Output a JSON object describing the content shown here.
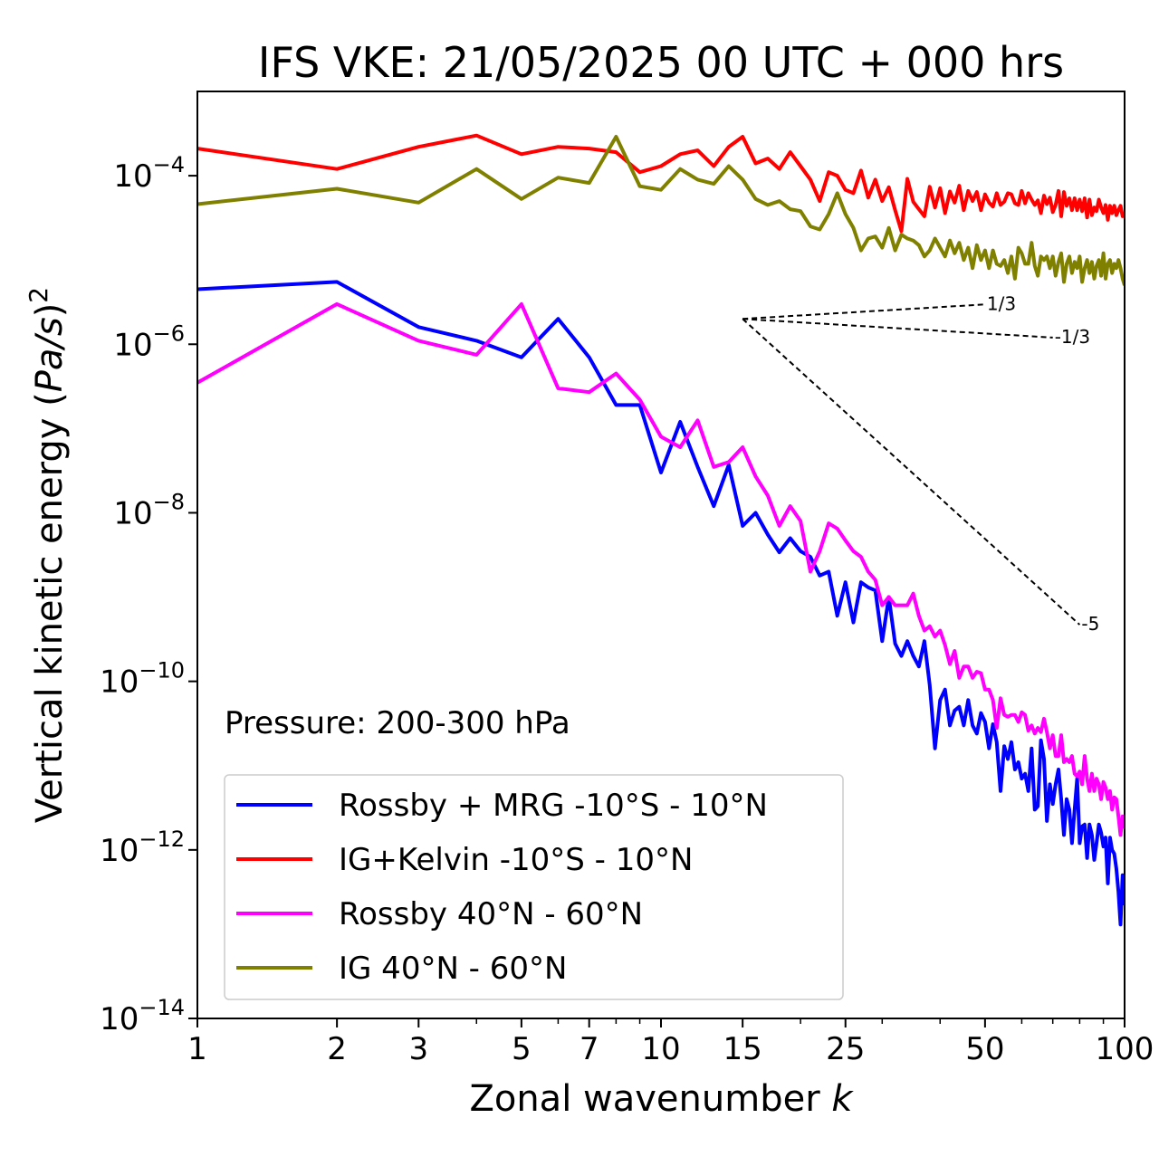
{
  "chart_data": {
    "type": "line",
    "title": "IFS VKE: 21/05/2025 00 UTC + 000 hrs",
    "xlabel": "Zonal wavenumber k",
    "ylabel": "Vertical kinetic energy (Pa/s)^2",
    "xscale": "log",
    "yscale": "log",
    "xlim": [
      1,
      100
    ],
    "ylim": [
      1e-14,
      0.001
    ],
    "x_ticks": [
      1,
      2,
      3,
      5,
      7,
      10,
      15,
      25,
      50,
      100
    ],
    "x_tick_labels": [
      "1",
      "2",
      "3",
      "5",
      "7",
      "10",
      "15",
      "25",
      "50",
      "100"
    ],
    "y_ticks": [
      -14,
      -12,
      -10,
      -8,
      -6,
      -4
    ],
    "y_tick_labels": [
      {
        "base": "10",
        "exp": "−14"
      },
      {
        "base": "10",
        "exp": "−12"
      },
      {
        "base": "10",
        "exp": "−10"
      },
      {
        "base": "10",
        "exp": "−8"
      },
      {
        "base": "10",
        "exp": "−6"
      },
      {
        "base": "10",
        "exp": "−4"
      }
    ],
    "annotation": "Pressure: 200-300 hPa",
    "legend_position": "lower-left",
    "grid": false,
    "series": [
      {
        "name": "Rossby + MRG -10°S - 10°N",
        "color": "#0000ff",
        "x": [
          1,
          2,
          3,
          4,
          5,
          6,
          7,
          8,
          9,
          10,
          11,
          12,
          13,
          14,
          15,
          16,
          17,
          18,
          19,
          20,
          21,
          22,
          23,
          24,
          25,
          26,
          27,
          28,
          29,
          30,
          31,
          32,
          33,
          34,
          35,
          36,
          37,
          38,
          39,
          40,
          41,
          42,
          43,
          44,
          45,
          46,
          47,
          48,
          49,
          50,
          51,
          52,
          53,
          54,
          55,
          56,
          57,
          58,
          59,
          60,
          61,
          62,
          63,
          64,
          65,
          66,
          67,
          68,
          69,
          70,
          71,
          72,
          73,
          74,
          75,
          76,
          77,
          78,
          79,
          80,
          81,
          82,
          83,
          84,
          85,
          86,
          87,
          88,
          89,
          90,
          91,
          92,
          93,
          94,
          95,
          96,
          97,
          98,
          99,
          100
        ],
        "y": [
          4.5e-06,
          5.5e-06,
          1.6e-06,
          1.1e-06,
          7e-07,
          2e-06,
          7e-07,
          1.9e-07,
          1.9e-07,
          3e-08,
          1.2e-07,
          3.5e-08,
          1.2e-08,
          3.7e-08,
          7e-09,
          1e-08,
          5.5e-09,
          3.4e-09,
          5e-09,
          3.5e-09,
          3e-09,
          1.8e-09,
          2e-09,
          6e-10,
          1.5e-09,
          5e-10,
          1.5e-09,
          1.3e-09,
          1.2e-09,
          3e-10,
          1e-09,
          2.8e-10,
          2e-10,
          3e-10,
          2e-10,
          1.5e-10,
          3e-10,
          9e-11,
          1.6e-11,
          6e-11,
          8e-11,
          3e-11,
          4.5e-11,
          5e-11,
          3e-11,
          6e-11,
          3e-11,
          2.4e-11,
          4.2e-11,
          3.3e-11,
          1.6e-11,
          3.1e-11,
          1.9e-11,
          5e-12,
          1.7e-11,
          1.2e-11,
          1.9e-11,
          9e-12,
          1.1e-11,
          7e-12,
          8e-12,
          5e-12,
          1.6e-11,
          3e-12,
          3.3e-12,
          2e-11,
          1.2e-11,
          2.2e-12,
          6e-12,
          3.5e-12,
          6e-12,
          9e-12,
          4e-12,
          1.5e-12,
          4e-12,
          3e-12,
          1.2e-12,
          3e-12,
          7e-12,
          1.2e-12,
          1.9e-12,
          2e-12,
          8e-13,
          2e-12,
          1.5e-12,
          7.6e-13,
          1.2e-12,
          2e-12,
          1.6e-12,
          1.1e-12,
          1.4e-12,
          4e-13,
          1.4e-12,
          1e-12,
          9e-13,
          6e-13,
          3.2e-13,
          1.3e-13,
          5e-13,
          2.2e-13
        ]
      },
      {
        "name": "IG+Kelvin -10°S - 10°N",
        "color": "#ff0000",
        "x": [
          1,
          2,
          3,
          4,
          5,
          6,
          7,
          8,
          9,
          10,
          11,
          12,
          13,
          14,
          15,
          16,
          17,
          18,
          19,
          20,
          21,
          22,
          23,
          24,
          25,
          26,
          27,
          28,
          29,
          30,
          31,
          32,
          33,
          34,
          35,
          36,
          37,
          38,
          39,
          40,
          41,
          42,
          43,
          44,
          45,
          46,
          47,
          48,
          49,
          50,
          51,
          52,
          53,
          54,
          55,
          56,
          57,
          58,
          59,
          60,
          61,
          62,
          63,
          64,
          65,
          66,
          67,
          68,
          69,
          70,
          71,
          72,
          73,
          74,
          75,
          76,
          77,
          78,
          79,
          80,
          81,
          82,
          83,
          84,
          85,
          86,
          87,
          88,
          89,
          90,
          91,
          92,
          93,
          94,
          95,
          96,
          97,
          98,
          99,
          100
        ],
        "y": [
          0.00021,
          0.00012,
          0.00022,
          0.0003,
          0.00018,
          0.00022,
          0.00021,
          0.00019,
          0.00011,
          0.00013,
          0.00018,
          0.0002,
          0.00013,
          0.00022,
          0.00029,
          0.00014,
          0.00016,
          0.00012,
          0.00019,
          0.00013,
          9e-05,
          5e-05,
          0.00011,
          0.0001,
          6.8e-05,
          6.2e-05,
          0.000115,
          5.5e-05,
          9e-05,
          5e-05,
          7.3e-05,
          3.9e-05,
          2.2e-05,
          9.2e-05,
          4.9e-05,
          4e-05,
          3.3e-05,
          7.4e-05,
          4.2e-05,
          7.1e-05,
          3.6e-05,
          6.5e-05,
          4.8e-05,
          7.6e-05,
          3.9e-05,
          6.6e-05,
          5e-05,
          6.4e-05,
          3.9e-05,
          6e-05,
          4.8e-05,
          4.3e-05,
          6.2e-05,
          4.5e-05,
          4.9e-05,
          6.2e-05,
          6e-05,
          4.7e-05,
          4.5e-05,
          6.6e-05,
          4.7e-05,
          6.2e-05,
          5.2e-05,
          4.5e-05,
          5.1e-05,
          3.6e-05,
          5.8e-05,
          4.6e-05,
          5.5e-05,
          3.7e-05,
          4.5e-05,
          6.6e-05,
          3.3e-05,
          6.4e-05,
          4.4e-05,
          5.4e-05,
          3.9e-05,
          5.4e-05,
          3.9e-05,
          5.2e-05,
          3.8e-05,
          5.4e-05,
          3.2e-05,
          5.2e-05,
          3.4e-05,
          4.2e-05,
          3.8e-05,
          5.2e-05,
          4.2e-05,
          3.6e-05,
          4.5e-05,
          3e-05,
          4.4e-05,
          3.6e-05,
          4.4e-05,
          3.4e-05,
          3.9e-05,
          4.4e-05,
          3.3e-05,
          3.6e-05
        ]
      },
      {
        "name": "Rossby 40°N - 60°N",
        "color": "#ff00ff",
        "x": [
          1,
          2,
          3,
          4,
          5,
          6,
          7,
          8,
          9,
          10,
          11,
          12,
          13,
          14,
          15,
          16,
          17,
          18,
          19,
          20,
          21,
          22,
          23,
          24,
          25,
          26,
          27,
          28,
          29,
          30,
          31,
          32,
          33,
          34,
          35,
          36,
          37,
          38,
          39,
          40,
          41,
          42,
          43,
          44,
          45,
          46,
          47,
          48,
          49,
          50,
          51,
          52,
          53,
          54,
          55,
          56,
          57,
          58,
          59,
          60,
          61,
          62,
          63,
          64,
          65,
          66,
          67,
          68,
          69,
          70,
          71,
          72,
          73,
          74,
          75,
          76,
          77,
          78,
          79,
          80,
          81,
          82,
          83,
          84,
          85,
          86,
          87,
          88,
          89,
          90,
          91,
          92,
          93,
          94,
          95,
          96,
          97,
          98,
          99,
          100
        ],
        "y": [
          3.5e-07,
          3e-06,
          1.1e-06,
          7.5e-07,
          3e-06,
          3e-07,
          2.7e-07,
          4.5e-07,
          2.2e-07,
          8e-08,
          6e-08,
          1.25e-07,
          3.5e-08,
          4e-08,
          6e-08,
          2.7e-08,
          1.6e-08,
          7e-09,
          1.2e-08,
          8e-09,
          2e-09,
          3.5e-09,
          7.5e-09,
          6.5e-09,
          4.7e-09,
          3.5e-09,
          3e-09,
          2e-09,
          1.6e-09,
          8e-10,
          1e-09,
          8e-10,
          8e-10,
          8e-10,
          1.1e-09,
          6e-10,
          4e-10,
          4.5e-10,
          3.4e-10,
          4e-10,
          2.7e-10,
          1.6e-10,
          2.3e-10,
          1.1e-10,
          1.5e-10,
          1.5e-10,
          1.1e-10,
          1.3e-10,
          1.25e-10,
          8e-11,
          8e-11,
          6e-11,
          2.8e-11,
          6.3e-11,
          4e-11,
          3.8e-11,
          4e-11,
          4e-11,
          3.3e-11,
          4.3e-11,
          4e-11,
          2.6e-11,
          3e-11,
          2.4e-11,
          2.8e-11,
          2.5e-11,
          3.6e-11,
          2.5e-11,
          1.6e-11,
          2.3e-11,
          1.3e-11,
          1.3e-11,
          2.3e-11,
          1.1e-11,
          1.2e-11,
          1.1e-11,
          1.3e-11,
          8e-12,
          7.5e-12,
          8.5e-12,
          6e-12,
          1.3e-11,
          7e-12,
          5e-12,
          8e-12,
          5e-12,
          7e-12,
          6e-12,
          4e-12,
          6.4e-12,
          5.5e-12,
          4e-12,
          5e-12,
          3e-12,
          4.2e-12,
          4e-12,
          2.5e-12,
          1.5e-12,
          2.5e-12,
          1.8e-12
        ]
      },
      {
        "name": "IG 40°N - 60°N",
        "color": "#808000",
        "x": [
          1,
          2,
          3,
          4,
          5,
          6,
          7,
          8,
          9,
          10,
          11,
          12,
          13,
          14,
          15,
          16,
          17,
          18,
          19,
          20,
          21,
          22,
          23,
          24,
          25,
          26,
          27,
          28,
          29,
          30,
          31,
          32,
          33,
          34,
          35,
          36,
          37,
          38,
          39,
          40,
          41,
          42,
          43,
          44,
          45,
          46,
          47,
          48,
          49,
          50,
          51,
          52,
          53,
          54,
          55,
          56,
          57,
          58,
          59,
          60,
          61,
          62,
          63,
          64,
          65,
          66,
          67,
          68,
          69,
          70,
          71,
          72,
          73,
          74,
          75,
          76,
          77,
          78,
          79,
          80,
          81,
          82,
          83,
          84,
          85,
          86,
          87,
          88,
          89,
          90,
          91,
          92,
          93,
          94,
          95,
          96,
          97,
          98,
          99,
          100
        ],
        "y": [
          4.6e-05,
          7e-05,
          4.8e-05,
          0.00012,
          5.3e-05,
          9.5e-05,
          8.2e-05,
          0.00029,
          7.5e-05,
          6.8e-05,
          0.00012,
          9e-05,
          8e-05,
          0.00013,
          9e-05,
          5.3e-05,
          4.5e-05,
          5e-05,
          4e-05,
          3.8e-05,
          2.5e-05,
          2.3e-05,
          3.5e-05,
          6.2e-05,
          3.5e-05,
          2.4e-05,
          1.3e-05,
          1.8e-05,
          1.9e-05,
          1.4e-05,
          2.4e-05,
          1.3e-05,
          2e-05,
          1.8e-05,
          1.7e-05,
          1.5e-05,
          1.1e-05,
          1.3e-05,
          1.8e-05,
          1.4e-05,
          1.1e-05,
          1.7e-05,
          1.2e-05,
          1.6e-05,
          1e-05,
          1.4e-05,
          8e-06,
          1.5e-05,
          1e-05,
          1.3e-05,
          8e-06,
          1.3e-05,
          9e-06,
          8.5e-06,
          1e-05,
          7e-06,
          1.1e-05,
          6e-06,
          1.4e-05,
          1.2e-05,
          9e-06,
          9e-06,
          1.6e-05,
          8.5e-06,
          6.5e-06,
          1.1e-05,
          1e-05,
          1.1e-05,
          8e-06,
          1.1e-05,
          6.5e-06,
          9.5e-06,
          1.2e-05,
          5.5e-06,
          9e-06,
          1.1e-05,
          7e-06,
          9.5e-06,
          8e-06,
          1.1e-05,
          5.5e-06,
          8e-06,
          1e-05,
          7e-06,
          9.5e-06,
          6e-06,
          8.5e-06,
          1e-05,
          6.5e-06,
          1.2e-05,
          6e-06,
          9e-06,
          1e-05,
          7e-06,
          9e-06,
          8e-06,
          1e-05,
          8e-06,
          6e-06,
          5e-06
        ]
      }
    ],
    "reference_lines": [
      {
        "label": "1/3",
        "slope": 0.3333333333333333,
        "x": [
          15,
          50
        ],
        "y": [
          2e-06,
          2.97e-06
        ]
      },
      {
        "label": "-1/3",
        "slope": -0.3333333333333333,
        "x": [
          15,
          70
        ],
        "y": [
          2e-06,
          1.2e-06
        ]
      },
      {
        "label": "-5",
        "slope": -5,
        "x": [
          15,
          80
        ],
        "y": [
          2e-06,
          4.7e-10
        ]
      }
    ]
  }
}
